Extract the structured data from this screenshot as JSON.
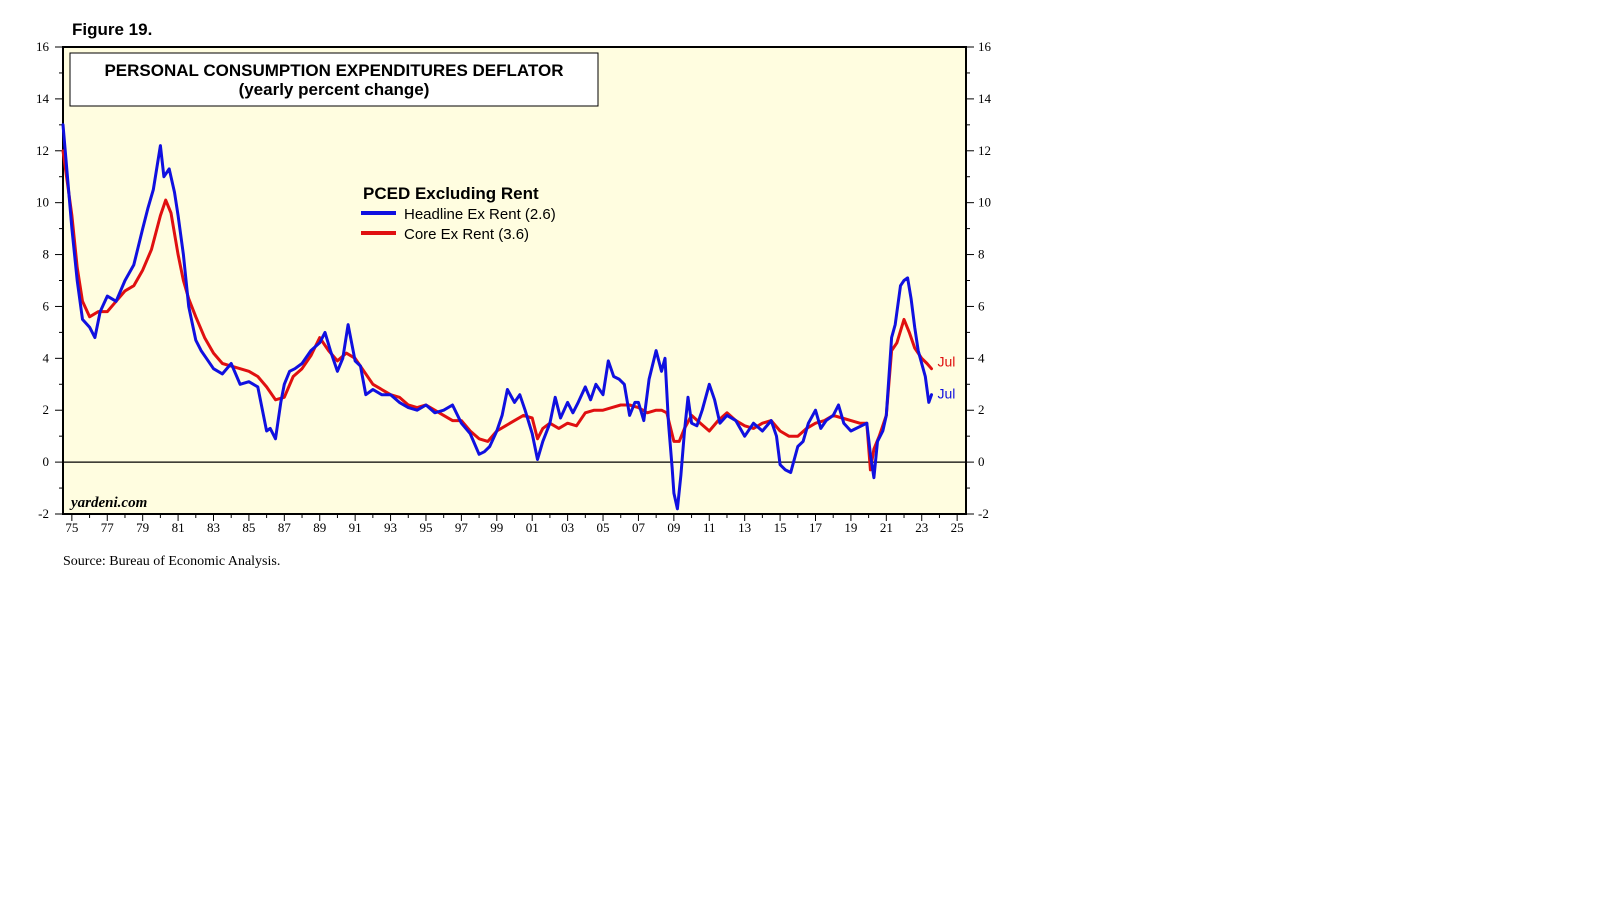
{
  "figure_label": "Figure 19.",
  "source_note": "Source: Bureau of Economic Analysis.",
  "watermark": "yardeni.com",
  "colors": {
    "plot_background": "#fffde0",
    "headline": "#1010e0",
    "core": "#e01010",
    "zero_line": "#000000"
  },
  "chart_data": {
    "type": "line",
    "title": "PERSONAL CONSUMPTION EXPENDITURES DEFLATOR",
    "subtitle": "(yearly percent change)",
    "legend_title": "PCED Excluding Rent",
    "xlabel": "",
    "ylabel": "",
    "xlim": [
      1974.5,
      2025.5
    ],
    "ylim": [
      -2,
      16
    ],
    "yticks": [
      16,
      14,
      12,
      10,
      8,
      6,
      4,
      2,
      0,
      -2
    ],
    "xtick_labels": [
      "75",
      "77",
      "79",
      "81",
      "83",
      "85",
      "87",
      "89",
      "91",
      "93",
      "95",
      "97",
      "99",
      "01",
      "03",
      "05",
      "07",
      "09",
      "11",
      "13",
      "15",
      "17",
      "19",
      "21",
      "23",
      "25"
    ],
    "xtick_years": [
      1975,
      1977,
      1979,
      1981,
      1983,
      1985,
      1987,
      1989,
      1991,
      1993,
      1995,
      1997,
      1999,
      2001,
      2003,
      2005,
      2007,
      2009,
      2011,
      2013,
      2015,
      2017,
      2019,
      2021,
      2023,
      2025
    ],
    "reference_line": 0,
    "series": [
      {
        "name": "Headline Ex Rent (2.6)",
        "end_label": "Jul",
        "color": "#1010e0",
        "x": [
          1974.5,
          1975.0,
          1975.3,
          1975.6,
          1976.0,
          1976.3,
          1976.6,
          1977.0,
          1977.5,
          1978.0,
          1978.5,
          1979.0,
          1979.3,
          1979.6,
          1980.0,
          1980.2,
          1980.5,
          1980.8,
          1981.0,
          1981.3,
          1981.6,
          1982.0,
          1982.3,
          1982.6,
          1983.0,
          1983.5,
          1984.0,
          1984.5,
          1985.0,
          1985.5,
          1986.0,
          1986.2,
          1986.5,
          1986.8,
          1987.0,
          1987.3,
          1987.6,
          1988.0,
          1988.5,
          1989.0,
          1989.3,
          1989.6,
          1990.0,
          1990.3,
          1990.6,
          1991.0,
          1991.3,
          1991.6,
          1992.0,
          1992.5,
          1993.0,
          1993.5,
          1994.0,
          1994.5,
          1995.0,
          1995.5,
          1996.0,
          1996.5,
          1997.0,
          1997.5,
          1998.0,
          1998.3,
          1998.6,
          1999.0,
          1999.3,
          1999.6,
          2000.0,
          2000.3,
          2000.6,
          2001.0,
          2001.3,
          2001.6,
          2002.0,
          2002.3,
          2002.6,
          2003.0,
          2003.3,
          2003.6,
          2004.0,
          2004.3,
          2004.6,
          2005.0,
          2005.3,
          2005.6,
          2005.9,
          2006.2,
          2006.5,
          2006.8,
          2007.0,
          2007.3,
          2007.6,
          2008.0,
          2008.3,
          2008.5,
          2008.7,
          2008.9,
          2009.0,
          2009.2,
          2009.4,
          2009.6,
          2009.8,
          2010.0,
          2010.3,
          2010.6,
          2011.0,
          2011.3,
          2011.6,
          2012.0,
          2012.5,
          2013.0,
          2013.5,
          2014.0,
          2014.5,
          2014.8,
          2015.0,
          2015.3,
          2015.6,
          2016.0,
          2016.3,
          2016.6,
          2017.0,
          2017.3,
          2017.6,
          2018.0,
          2018.3,
          2018.6,
          2019.0,
          2019.3,
          2019.6,
          2019.9,
          2020.1,
          2020.3,
          2020.5,
          2020.8,
          2021.0,
          2021.3,
          2021.5,
          2021.8,
          2022.0,
          2022.2,
          2022.4,
          2022.6,
          2022.8,
          2023.0,
          2023.2,
          2023.4,
          2023.55
        ],
        "y": [
          13.0,
          9.0,
          7.0,
          5.5,
          5.2,
          4.8,
          5.8,
          6.4,
          6.2,
          7.0,
          7.6,
          9.0,
          9.8,
          10.5,
          12.2,
          11.0,
          11.3,
          10.4,
          9.5,
          8.0,
          6.0,
          4.7,
          4.3,
          4.0,
          3.6,
          3.4,
          3.8,
          3.0,
          3.1,
          2.9,
          1.2,
          1.3,
          0.9,
          2.3,
          3.0,
          3.5,
          3.6,
          3.8,
          4.3,
          4.6,
          5.0,
          4.3,
          3.5,
          4.0,
          5.3,
          3.9,
          3.7,
          2.6,
          2.8,
          2.6,
          2.6,
          2.3,
          2.1,
          2.0,
          2.2,
          1.9,
          2.0,
          2.2,
          1.5,
          1.1,
          0.3,
          0.4,
          0.6,
          1.2,
          1.8,
          2.8,
          2.3,
          2.6,
          2.0,
          1.1,
          0.1,
          0.8,
          1.5,
          2.5,
          1.7,
          2.3,
          1.9,
          2.3,
          2.9,
          2.4,
          3.0,
          2.6,
          3.9,
          3.3,
          3.2,
          3.0,
          1.8,
          2.3,
          2.3,
          1.6,
          3.2,
          4.3,
          3.5,
          4.0,
          1.5,
          -0.2,
          -1.2,
          -1.8,
          -0.5,
          1.2,
          2.5,
          1.5,
          1.4,
          2.0,
          3.0,
          2.4,
          1.5,
          1.8,
          1.6,
          1.0,
          1.5,
          1.2,
          1.6,
          1.0,
          -0.1,
          -0.3,
          -0.4,
          0.6,
          0.8,
          1.5,
          2.0,
          1.3,
          1.6,
          1.8,
          2.2,
          1.5,
          1.2,
          1.3,
          1.4,
          1.5,
          0.3,
          -0.6,
          0.8,
          1.2,
          1.8,
          4.8,
          5.3,
          6.8,
          7.0,
          7.1,
          6.3,
          5.2,
          4.3,
          3.8,
          3.3,
          2.3,
          2.6
        ]
      },
      {
        "name": "Core Ex Rent (3.6)",
        "end_label": "Jul",
        "color": "#e01010",
        "x": [
          1974.5,
          1975.0,
          1975.3,
          1975.6,
          1976.0,
          1976.5,
          1977.0,
          1977.5,
          1978.0,
          1978.5,
          1979.0,
          1979.5,
          1980.0,
          1980.3,
          1980.6,
          1981.0,
          1981.3,
          1981.6,
          1982.0,
          1982.5,
          1983.0,
          1983.5,
          1984.0,
          1984.5,
          1985.0,
          1985.5,
          1986.0,
          1986.5,
          1987.0,
          1987.5,
          1988.0,
          1988.5,
          1989.0,
          1989.5,
          1990.0,
          1990.5,
          1991.0,
          1991.5,
          1992.0,
          1992.5,
          1993.0,
          1993.5,
          1994.0,
          1994.5,
          1995.0,
          1995.5,
          1996.0,
          1996.5,
          1997.0,
          1997.5,
          1998.0,
          1998.5,
          1999.0,
          1999.5,
          2000.0,
          2000.5,
          2001.0,
          2001.3,
          2001.6,
          2002.0,
          2002.5,
          2003.0,
          2003.5,
          2004.0,
          2004.5,
          2005.0,
          2005.5,
          2006.0,
          2006.5,
          2007.0,
          2007.5,
          2008.0,
          2008.3,
          2008.6,
          2009.0,
          2009.3,
          2009.6,
          2010.0,
          2010.5,
          2011.0,
          2011.5,
          2012.0,
          2012.5,
          2013.0,
          2013.5,
          2014.0,
          2014.5,
          2015.0,
          2015.5,
          2016.0,
          2016.5,
          2017.0,
          2017.5,
          2018.0,
          2018.5,
          2019.0,
          2019.5,
          2019.9,
          2020.1,
          2020.3,
          2020.6,
          2021.0,
          2021.3,
          2021.6,
          2022.0,
          2022.3,
          2022.6,
          2023.0,
          2023.3,
          2023.55
        ],
        "y": [
          12.0,
          9.5,
          7.5,
          6.2,
          5.6,
          5.8,
          5.8,
          6.2,
          6.6,
          6.8,
          7.4,
          8.2,
          9.5,
          10.1,
          9.6,
          8.0,
          7.0,
          6.3,
          5.6,
          4.8,
          4.2,
          3.8,
          3.7,
          3.6,
          3.5,
          3.3,
          2.9,
          2.4,
          2.5,
          3.3,
          3.6,
          4.1,
          4.8,
          4.3,
          3.9,
          4.2,
          4.0,
          3.5,
          3.0,
          2.8,
          2.6,
          2.5,
          2.2,
          2.1,
          2.2,
          2.0,
          1.8,
          1.6,
          1.6,
          1.2,
          0.9,
          0.8,
          1.2,
          1.4,
          1.6,
          1.8,
          1.7,
          0.9,
          1.3,
          1.5,
          1.3,
          1.5,
          1.4,
          1.9,
          2.0,
          2.0,
          2.1,
          2.2,
          2.2,
          2.1,
          1.9,
          2.0,
          2.0,
          1.9,
          0.8,
          0.8,
          1.3,
          1.8,
          1.5,
          1.2,
          1.6,
          1.9,
          1.6,
          1.4,
          1.3,
          1.5,
          1.6,
          1.2,
          1.0,
          1.0,
          1.3,
          1.5,
          1.6,
          1.8,
          1.7,
          1.6,
          1.5,
          1.5,
          -0.3,
          0.5,
          1.0,
          1.8,
          4.3,
          4.6,
          5.5,
          5.0,
          4.4,
          4.0,
          3.8,
          3.6
        ]
      }
    ]
  }
}
